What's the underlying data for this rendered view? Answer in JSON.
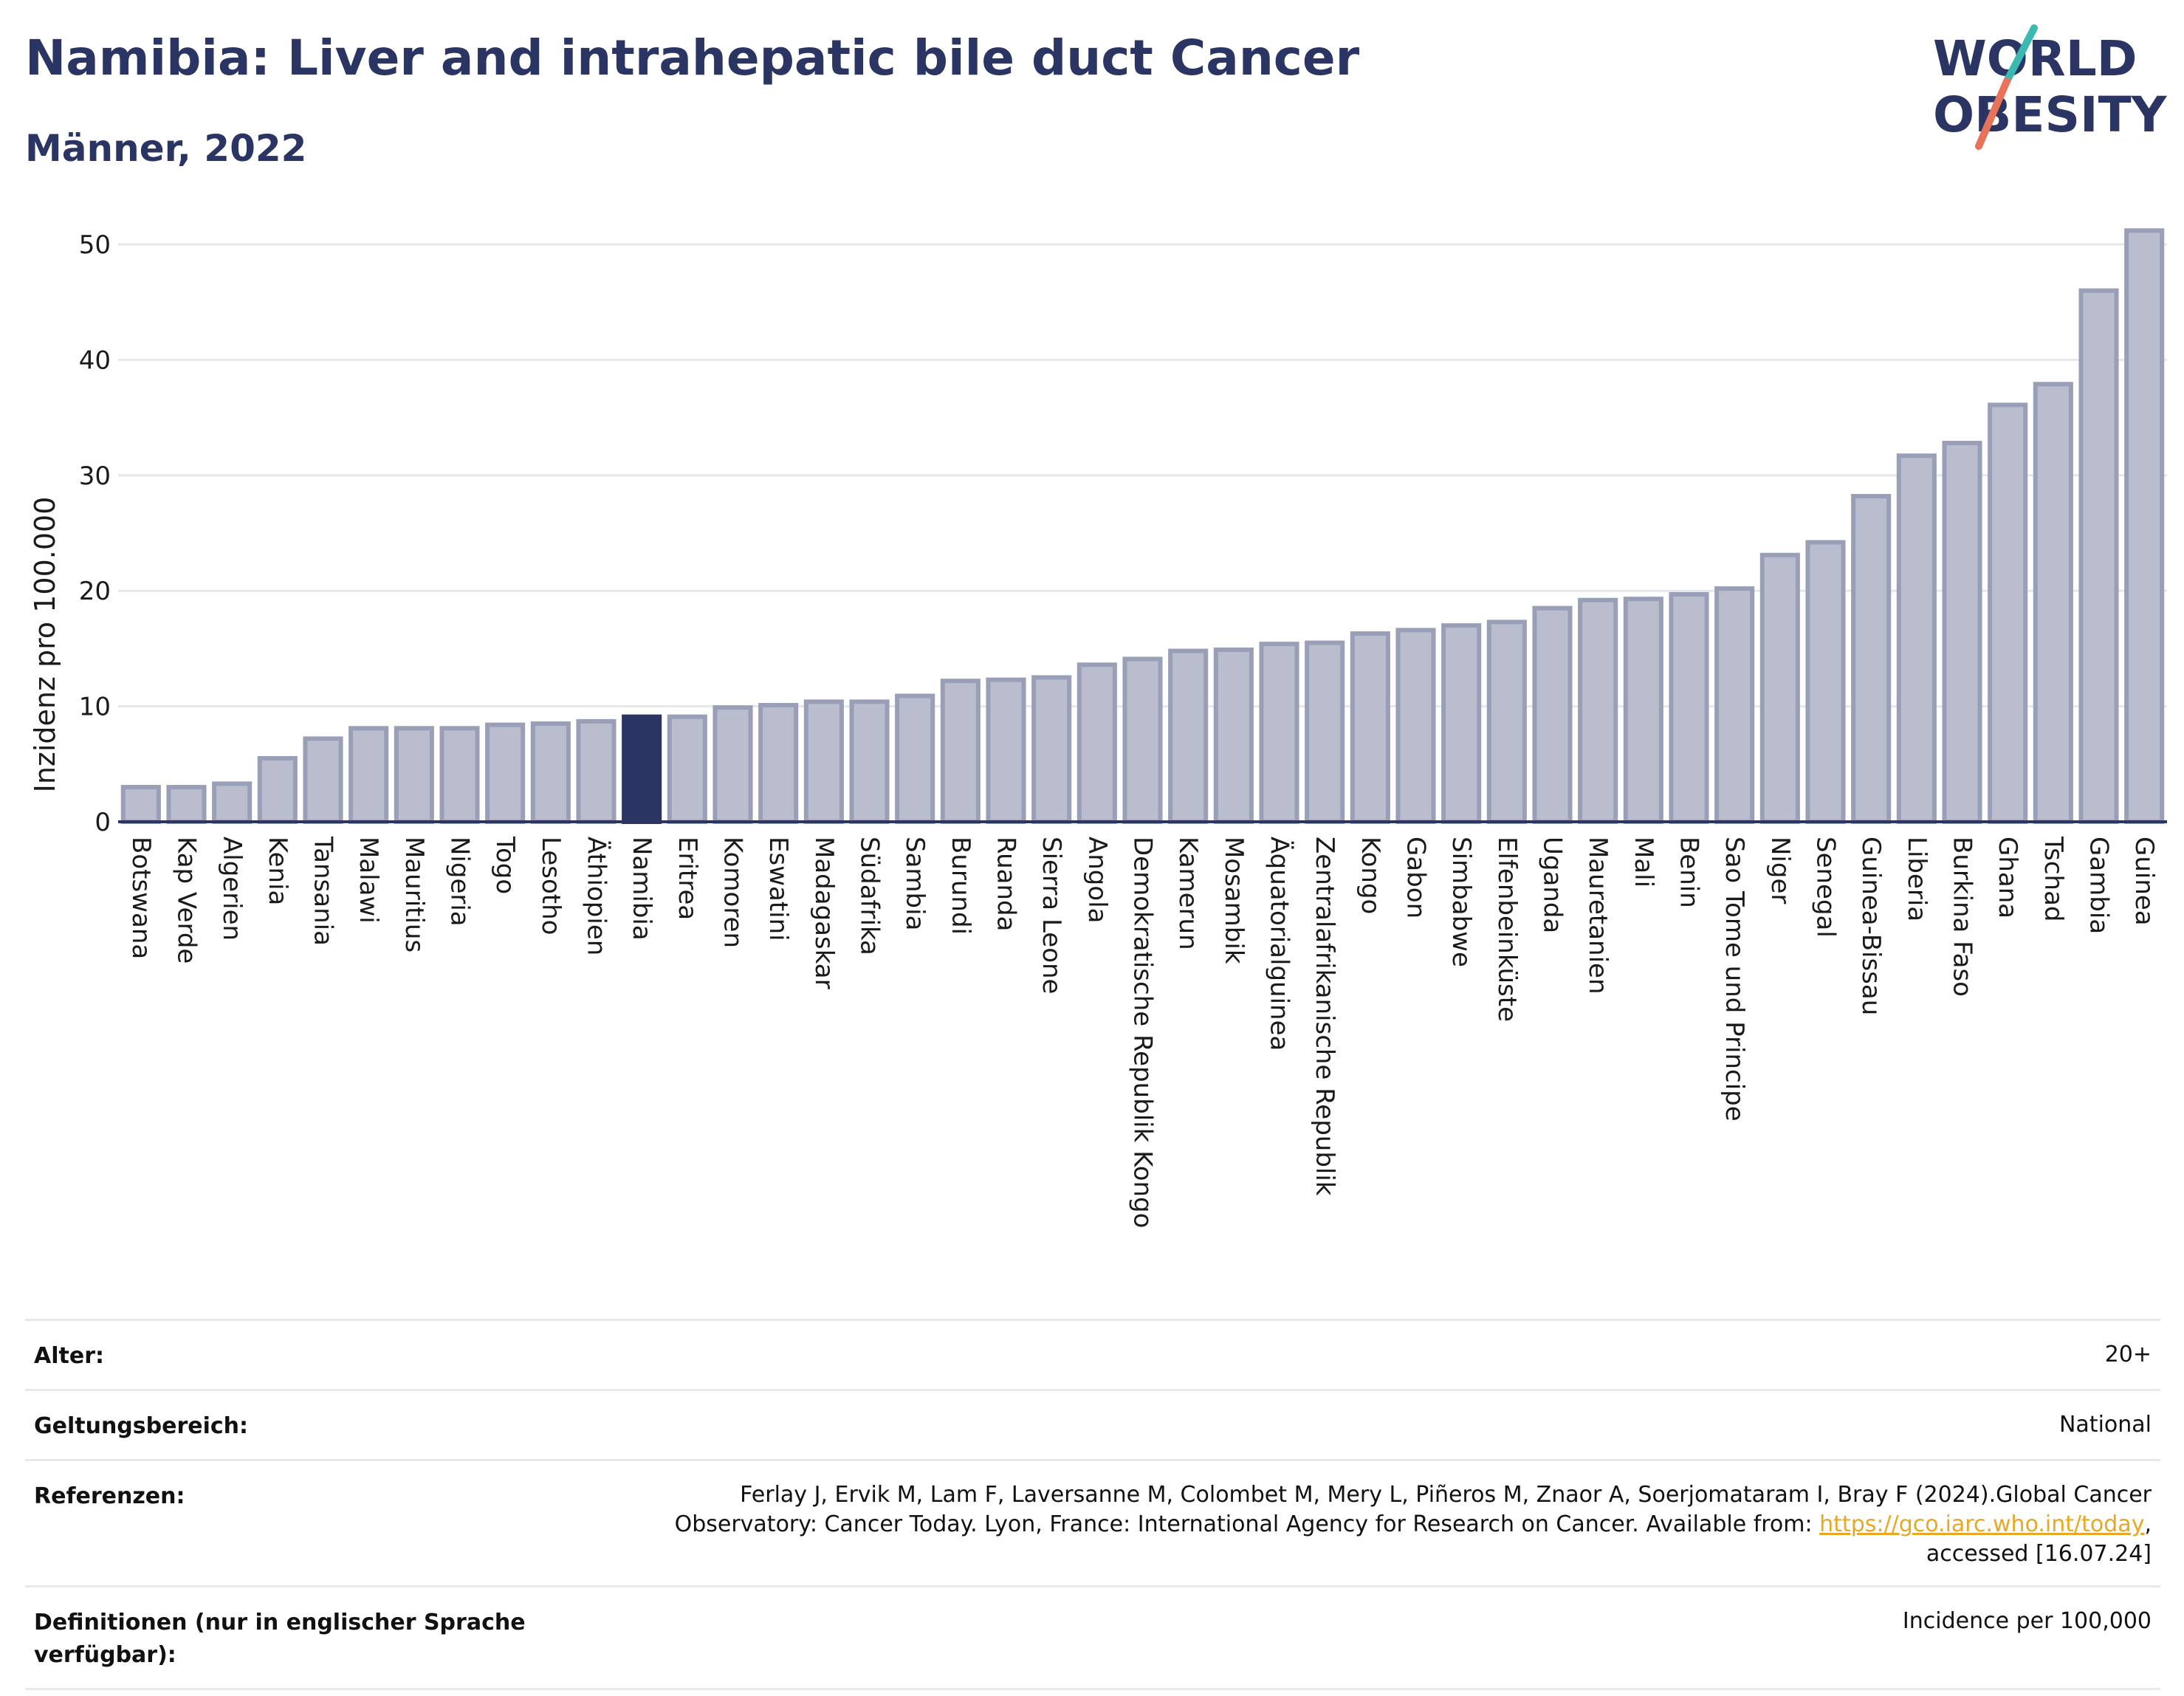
{
  "header": {
    "title": "Namibia: Liver and intrahepatic bile duct Cancer",
    "subtitle": "Männer, 2022"
  },
  "logo": {
    "line1": "WORLD",
    "line2": "OBESITY",
    "colors": {
      "text": "#2b3563",
      "slash_top": "#3bb8b0",
      "slash_bottom": "#e8735a"
    }
  },
  "chart_data": {
    "type": "bar",
    "title": "Namibia: Liver and intrahepatic bile duct Cancer",
    "subtitle": "Männer, 2022",
    "xlabel": "",
    "ylabel": "Inzidenz pro 100.000",
    "ylim": [
      0,
      53
    ],
    "yticks": [
      0,
      10,
      20,
      30,
      40,
      50
    ],
    "grid": true,
    "highlight": "Namibia",
    "colors": {
      "bar": "#b9bdcd",
      "bar_edge": "#9a9fb8",
      "highlight": "#2b3563"
    },
    "categories": [
      "Botswana",
      "Kap Verde",
      "Algerien",
      "Kenia",
      "Tansania",
      "Malawi",
      "Mauritius",
      "Nigeria",
      "Togo",
      "Lesotho",
      "Äthiopien",
      "Namibia",
      "Eritrea",
      "Komoren",
      "Eswatini",
      "Madagaskar",
      "Südafrika",
      "Sambia",
      "Burundi",
      "Ruanda",
      "Sierra Leone",
      "Angola",
      "Demokratische Republik Kongo",
      "Kamerun",
      "Mosambik",
      "Äquatorialguinea",
      "Zentralafrikanische Republik",
      "Kongo",
      "Gabon",
      "Simbabwe",
      "Elfenbeinküste",
      "Uganda",
      "Mauretanien",
      "Mali",
      "Benin",
      "Sao Tome und Principe",
      "Niger",
      "Senegal",
      "Guinea-Bissau",
      "Liberia",
      "Burkina Faso",
      "Ghana",
      "Tschad",
      "Gambia",
      "Guinea"
    ],
    "values": [
      3.0,
      3.0,
      3.3,
      5.5,
      7.2,
      8.1,
      8.1,
      8.1,
      8.4,
      8.5,
      8.7,
      9.1,
      9.1,
      9.9,
      10.1,
      10.4,
      10.4,
      10.9,
      12.2,
      12.3,
      12.5,
      13.6,
      14.1,
      14.8,
      14.9,
      15.4,
      15.5,
      16.3,
      16.6,
      17.0,
      17.3,
      18.5,
      19.2,
      19.3,
      19.7,
      20.2,
      23.1,
      24.2,
      28.2,
      31.7,
      32.8,
      36.1,
      37.9,
      46.0,
      51.2
    ]
  },
  "info": {
    "rows": [
      {
        "label": "Alter:",
        "value": "20+"
      },
      {
        "label": "Geltungsbereich:",
        "value": "National"
      },
      {
        "label": "Referenzen:",
        "value_line1": "Ferlay J, Ervik M, Lam F, Laversanne M, Colombet M, Mery L, Piñeros M, Znaor A, Soerjomataram I, Bray F (2024).Global Cancer",
        "value_line2_pre": "Observatory: Cancer Today. Lyon, France: International Agency for Research on Cancer. Available from: ",
        "link": "https://gco.iarc.who.int/today",
        "value_line2_post": ",",
        "value_line3": "accessed [16.07.24]"
      },
      {
        "label": "Definitionen (nur in englischer Sprache verfügbar):",
        "value": "Incidence per 100,000"
      }
    ]
  }
}
